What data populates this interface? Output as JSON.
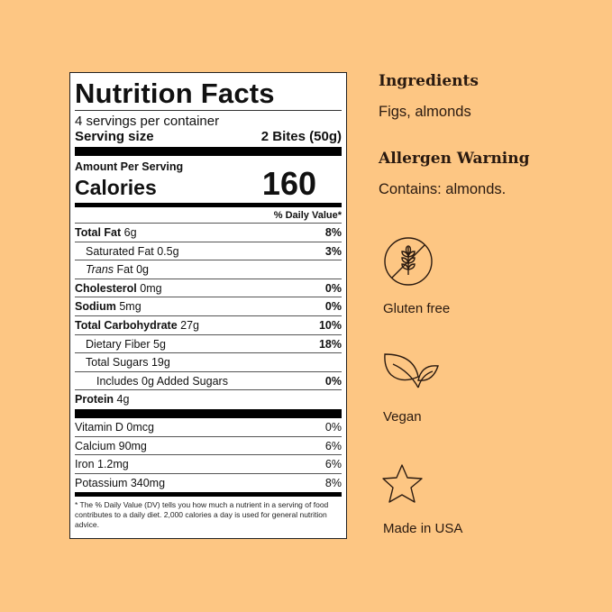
{
  "nutrition": {
    "title": "Nutrition Facts",
    "servings": "4 servings per container",
    "serving_size_label": "Serving size",
    "serving_size_value": "2 Bites (50g)",
    "amount_per_serving": "Amount Per Serving",
    "calories_label": "Calories",
    "calories_value": "160",
    "daily_value_header": "% Daily Value*",
    "rows": [
      {
        "name": "Total Fat",
        "amount": "6g",
        "dv": "8%"
      },
      {
        "name": "Saturated Fat",
        "amount": "0.5g",
        "dv": "3%"
      },
      {
        "name": "Trans",
        "name2": "Fat",
        "amount": "0g",
        "dv": ""
      },
      {
        "name": "Cholesterol",
        "amount": "0mg",
        "dv": "0%"
      },
      {
        "name": "Sodium",
        "amount": "5mg",
        "dv": "0%"
      },
      {
        "name": "Total Carbohydrate",
        "amount": "27g",
        "dv": "10%"
      },
      {
        "name": "Dietary Fiber",
        "amount": "5g",
        "dv": "18%"
      },
      {
        "name": "Total Sugars",
        "amount": "19g",
        "dv": ""
      },
      {
        "name": "Includes 0g Added Sugars",
        "amount": "",
        "dv": "0%"
      },
      {
        "name": "Protein",
        "amount": "4g",
        "dv": ""
      }
    ],
    "vitamins": [
      {
        "name": "Vitamin D 0mcg",
        "dv": "0%"
      },
      {
        "name": "Calcium 90mg",
        "dv": "6%"
      },
      {
        "name": "Iron 1.2mg",
        "dv": "6%"
      },
      {
        "name": "Potassium 340mg",
        "dv": "8%"
      }
    ],
    "footnote": "* The  %  Daily Value (DV) tells you how much a nutrient in a serving of food contributes to a daily diet. 2,000 calories a day is used for general nutrition advice."
  },
  "ingredients": {
    "heading": "Ingredients",
    "text": "Figs, almonds"
  },
  "allergen": {
    "heading": "Allergen Warning",
    "text": "Contains: almonds."
  },
  "badges": [
    {
      "icon": "gluten-free-icon",
      "label": "Gluten free"
    },
    {
      "icon": "leaf-icon",
      "label": "Vegan"
    },
    {
      "icon": "star-icon",
      "label": "Made in USA"
    }
  ],
  "colors": {
    "background": "#fdc683",
    "text": "#2a1a10"
  }
}
